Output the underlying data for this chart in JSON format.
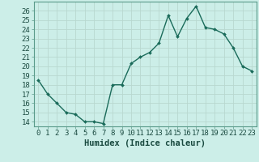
{
  "x": [
    0,
    1,
    2,
    3,
    4,
    5,
    6,
    7,
    8,
    9,
    10,
    11,
    12,
    13,
    14,
    15,
    16,
    17,
    18,
    19,
    20,
    21,
    22,
    23
  ],
  "y": [
    18.5,
    17.0,
    16.0,
    15.0,
    14.8,
    14.0,
    14.0,
    13.8,
    18.0,
    18.0,
    20.3,
    21.0,
    21.5,
    22.5,
    25.5,
    23.2,
    25.2,
    26.5,
    24.2,
    24.0,
    23.5,
    22.0,
    20.0,
    19.5
  ],
  "line_color": "#1a6b5a",
  "marker": "D",
  "marker_size": 2.0,
  "line_width": 1.0,
  "bg_color": "#cceee8",
  "plot_bg_color": "#cceee8",
  "grid_color": "#b8d8d0",
  "xlabel": "Humidex (Indice chaleur)",
  "xlabel_fontsize": 7.5,
  "tick_fontsize": 6.5,
  "ylim": [
    13.5,
    27.0
  ],
  "xlim": [
    -0.5,
    23.5
  ],
  "yticks": [
    14,
    15,
    16,
    17,
    18,
    19,
    20,
    21,
    22,
    23,
    24,
    25,
    26
  ],
  "xticks": [
    0,
    1,
    2,
    3,
    4,
    5,
    6,
    7,
    8,
    9,
    10,
    11,
    12,
    13,
    14,
    15,
    16,
    17,
    18,
    19,
    20,
    21,
    22,
    23
  ],
  "spine_color": "#5a9a8a"
}
